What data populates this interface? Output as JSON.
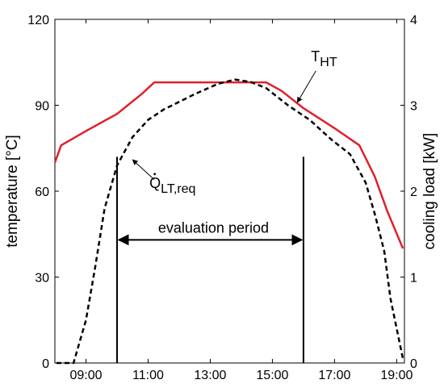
{
  "chart_data": {
    "type": "line",
    "xlabel": "",
    "ylabel_left": "temperature [°C]",
    "ylabel_right": "cooling  load [kW]",
    "xlim": [
      8.0,
      19.25
    ],
    "ylim_left": [
      0,
      120
    ],
    "ylim_right": [
      0,
      4
    ],
    "x_ticks": [
      9,
      11,
      13,
      15,
      17,
      19
    ],
    "x_tick_labels": [
      "09:00",
      "11:00",
      "13:00",
      "15:00",
      "17:00",
      "19:00"
    ],
    "y_left_ticks": [
      0,
      30,
      60,
      90,
      120
    ],
    "y_left_tick_labels": [
      "0",
      "30",
      "60",
      "90",
      "120"
    ],
    "y_right_ticks": [
      0,
      1,
      2,
      3,
      4
    ],
    "y_right_tick_labels": [
      "0",
      "1",
      "2",
      "3",
      "4"
    ],
    "grid": false,
    "series": [
      {
        "name": "T",
        "sub": "HT",
        "axis": "left",
        "color": "#e0202a",
        "style": "solid",
        "x": [
          8.0,
          8.2,
          9.0,
          10.0,
          10.8,
          11.2,
          12.0,
          13.0,
          14.0,
          14.8,
          15.3,
          16.0,
          17.0,
          17.8,
          18.3,
          18.7,
          19.2
        ],
        "y": [
          70,
          76,
          81,
          87,
          94,
          98,
          98,
          98,
          98,
          98,
          95,
          89,
          82,
          76,
          65,
          53,
          40
        ]
      },
      {
        "name": "Q",
        "sub": "LT,req",
        "axis": "right",
        "color": "#000000",
        "style": "dashed",
        "x": [
          8.05,
          8.6,
          9.0,
          9.3,
          9.6,
          10.0,
          10.5,
          11.0,
          11.5,
          12.5,
          13.25,
          13.8,
          14.3,
          14.8,
          15.5,
          16.2,
          16.9,
          17.5,
          18.0,
          18.3,
          18.6,
          18.8,
          19.2
        ],
        "y": [
          0.0,
          0.0,
          0.5,
          1.12,
          1.8,
          2.3,
          2.63,
          2.83,
          2.95,
          3.13,
          3.25,
          3.3,
          3.27,
          3.2,
          3.0,
          2.83,
          2.6,
          2.43,
          2.1,
          1.73,
          1.3,
          0.75,
          0.05
        ]
      }
    ],
    "evaluation_period": {
      "label": "evaluation period",
      "start": 10.0,
      "end": 16.0,
      "marker_height": 72,
      "arrow_y": 43
    },
    "annotations": [
      {
        "target": "T_HT",
        "text": "T",
        "sub": "HT",
        "arrow_from": [
          16.4,
          102
        ],
        "arrow_to": [
          15.8,
          91
        ]
      },
      {
        "target": "Q_LT,req",
        "text": "Q",
        "sub": "LT,req",
        "arrow_from": [
          11.2,
          64
        ],
        "arrow_to": [
          10.5,
          71
        ]
      }
    ]
  }
}
